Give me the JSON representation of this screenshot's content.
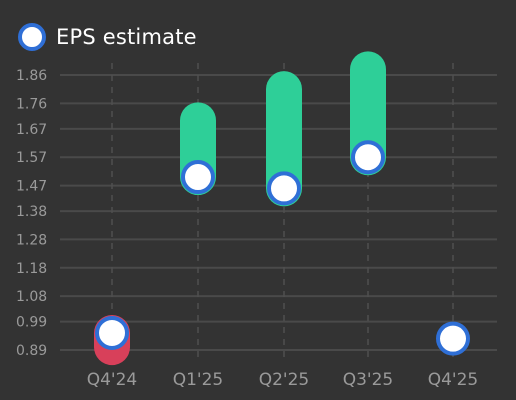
{
  "legend": {
    "label": "EPS estimate",
    "marker_fill": "#ffffff",
    "marker_stroke": "#2f6fd6"
  },
  "colors": {
    "background": "#333333",
    "grid": "#4a4a4a",
    "beat": "#2ecf98",
    "miss": "#d8405a",
    "estimate_fill": "#ffffff",
    "estimate_stroke": "#2f6fd6",
    "label": "#9a9a9a"
  },
  "chart_data": {
    "type": "range-dot",
    "title": "",
    "xlabel": "",
    "ylabel": "",
    "categories": [
      "Q4'24",
      "Q1'25",
      "Q2'25",
      "Q3'25",
      "Q4'25"
    ],
    "y_ticks": [
      "0.89",
      "0.99",
      "1.08",
      "1.18",
      "1.28",
      "1.38",
      "1.47",
      "1.57",
      "1.67",
      "1.76",
      "1.86"
    ],
    "ylim": [
      0.89,
      1.86
    ],
    "grid": true,
    "legend_position": "top-left",
    "series": [
      {
        "name": "EPS estimate",
        "values": [
          0.95,
          1.5,
          1.46,
          1.57,
          0.93
        ]
      }
    ],
    "actual_values": [
      0.9,
      1.7,
      1.81,
      1.88,
      null
    ],
    "range_colors": [
      "miss",
      "beat",
      "beat",
      "beat",
      null
    ]
  }
}
